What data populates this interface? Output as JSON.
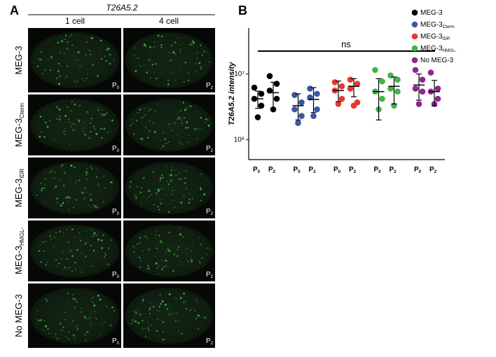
{
  "panel_a": {
    "label": "A",
    "title": "T26A5.2",
    "columns": [
      "1 cell",
      "4 cell"
    ],
    "rows": [
      {
        "name": "MEG-3"
      },
      {
        "name": "MEG-3",
        "subscript": "Cterm"
      },
      {
        "name": "MEG-3",
        "subscript": "IDR"
      },
      {
        "name": "MEG-3",
        "subscript": "HMGL-"
      },
      {
        "name": "No MEG-3"
      }
    ],
    "cell_labels": [
      {
        "text": "P",
        "subscript": "0"
      },
      {
        "text": "P",
        "subscript": "2"
      }
    ]
  },
  "chart_data": {
    "type": "dotplot",
    "label": "B",
    "y_label": "T26A5.2 intensity",
    "annotation": "ns",
    "log_scale": true,
    "ylim": [
      500000,
      50000000
    ],
    "yticks": [
      {
        "value": 1000000,
        "label": "10⁶"
      },
      {
        "value": 10000000,
        "label": "10⁷"
      }
    ],
    "categories": [
      {
        "text": "P",
        "subscript": "0"
      },
      {
        "text": "P",
        "subscript": "2"
      }
    ],
    "series": [
      {
        "name": "MEG-3",
        "color": "#000000",
        "groups": [
          {
            "points": [
              6200000,
              5000000,
              4200000,
              3300000,
              2200000
            ],
            "mean": 4200000,
            "err": [
              3000000,
              5500000
            ]
          },
          {
            "points": [
              9300000,
              7100000,
              5600000,
              4200000,
              2900000
            ],
            "mean": 5200000,
            "err": [
              3000000,
              7500000
            ]
          }
        ]
      },
      {
        "name": "MEG-3",
        "subscript": "Cterm",
        "color": "#3e56a4",
        "groups": [
          {
            "points": [
              4800000,
              3700000,
              2900000,
              2300000,
              1800000
            ],
            "mean": 3300000,
            "err": [
              2000000,
              5000000
            ]
          },
          {
            "points": [
              6000000,
              5000000,
              4400000,
              2900000,
              2300000
            ],
            "mean": 4100000,
            "err": [
              2600000,
              6200000
            ]
          }
        ]
      },
      {
        "name": "MEG-3",
        "subscript": "IDR",
        "color": "#e8392b",
        "groups": [
          {
            "points": [
              7500000,
              6500000,
              5600000,
              4200000,
              3500000
            ],
            "mean": 5600000,
            "err": [
              3800000,
              7800000
            ]
          },
          {
            "points": [
              8200000,
              7100000,
              6000000,
              3700000,
              3300000
            ],
            "mean": 6500000,
            "err": [
              4500000,
              8500000
            ]
          }
        ]
      },
      {
        "name": "MEG-3",
        "subscript": "HMGL-",
        "color": "#3db54a",
        "groups": [
          {
            "points": [
              11500000,
              7700000,
              5400000,
              4200000,
              2900000
            ],
            "mean": 5400000,
            "err": [
              2000000,
              8500000
            ]
          },
          {
            "points": [
              9500000,
              8200000,
              6000000,
              5400000,
              3300000
            ],
            "mean": 6500000,
            "err": [
              3500000,
              9000000
            ]
          }
        ]
      },
      {
        "name": "No MEG-3",
        "color": "#8e268e",
        "groups": [
          {
            "points": [
              11500000,
              8200000,
              6000000,
              5400000,
              3500000
            ],
            "mean": 6800000,
            "err": [
              4000000,
              10000000
            ]
          },
          {
            "points": [
              10500000,
              6000000,
              5400000,
              4200000,
              3500000
            ],
            "mean": 5400000,
            "err": [
              3300000,
              8000000
            ]
          }
        ]
      }
    ]
  }
}
